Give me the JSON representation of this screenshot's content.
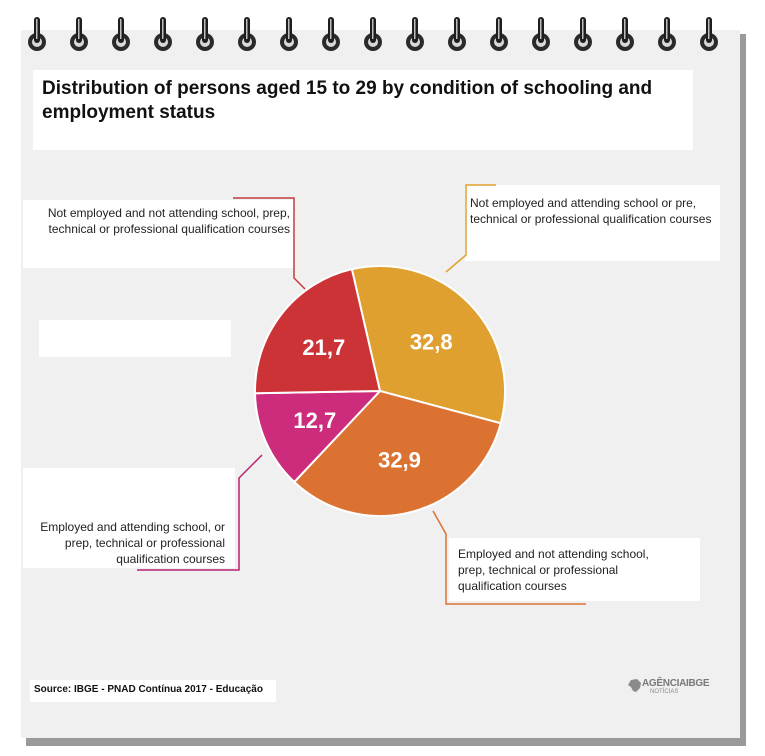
{
  "title": "Distribution of persons aged 15 to 29 by condition of schooling and employment status",
  "chart_data": {
    "type": "pie",
    "slices": [
      {
        "label": "Not employed and attending school or pre, technical or professional qualification courses",
        "value": 32.8,
        "display": "32,8",
        "color": "#e0a030",
        "leader": "#e0a030"
      },
      {
        "label": "Employed and not attending school, prep, technical or professional qualification courses",
        "value": 32.9,
        "display": "32,9",
        "color": "#dc7232",
        "leader": "#dc7232"
      },
      {
        "label": "Employed and attending school, or prep, technical or professional qualification courses",
        "value": 12.7,
        "display": "12,7",
        "color": "#cd2b7b",
        "leader": "#b8206e"
      },
      {
        "label": "Not employed and not attending school, prep, technical or professional qualification courses",
        "value": 21.7,
        "display": "21,7",
        "color": "#cc3336",
        "leader": "#c43a3a"
      }
    ]
  },
  "source": "Source: IBGE - PNAD Contínua 2017 - Educação",
  "logo": {
    "name": "AGÊNCIAIBGE",
    "sub": "NOTÍCIAS"
  }
}
